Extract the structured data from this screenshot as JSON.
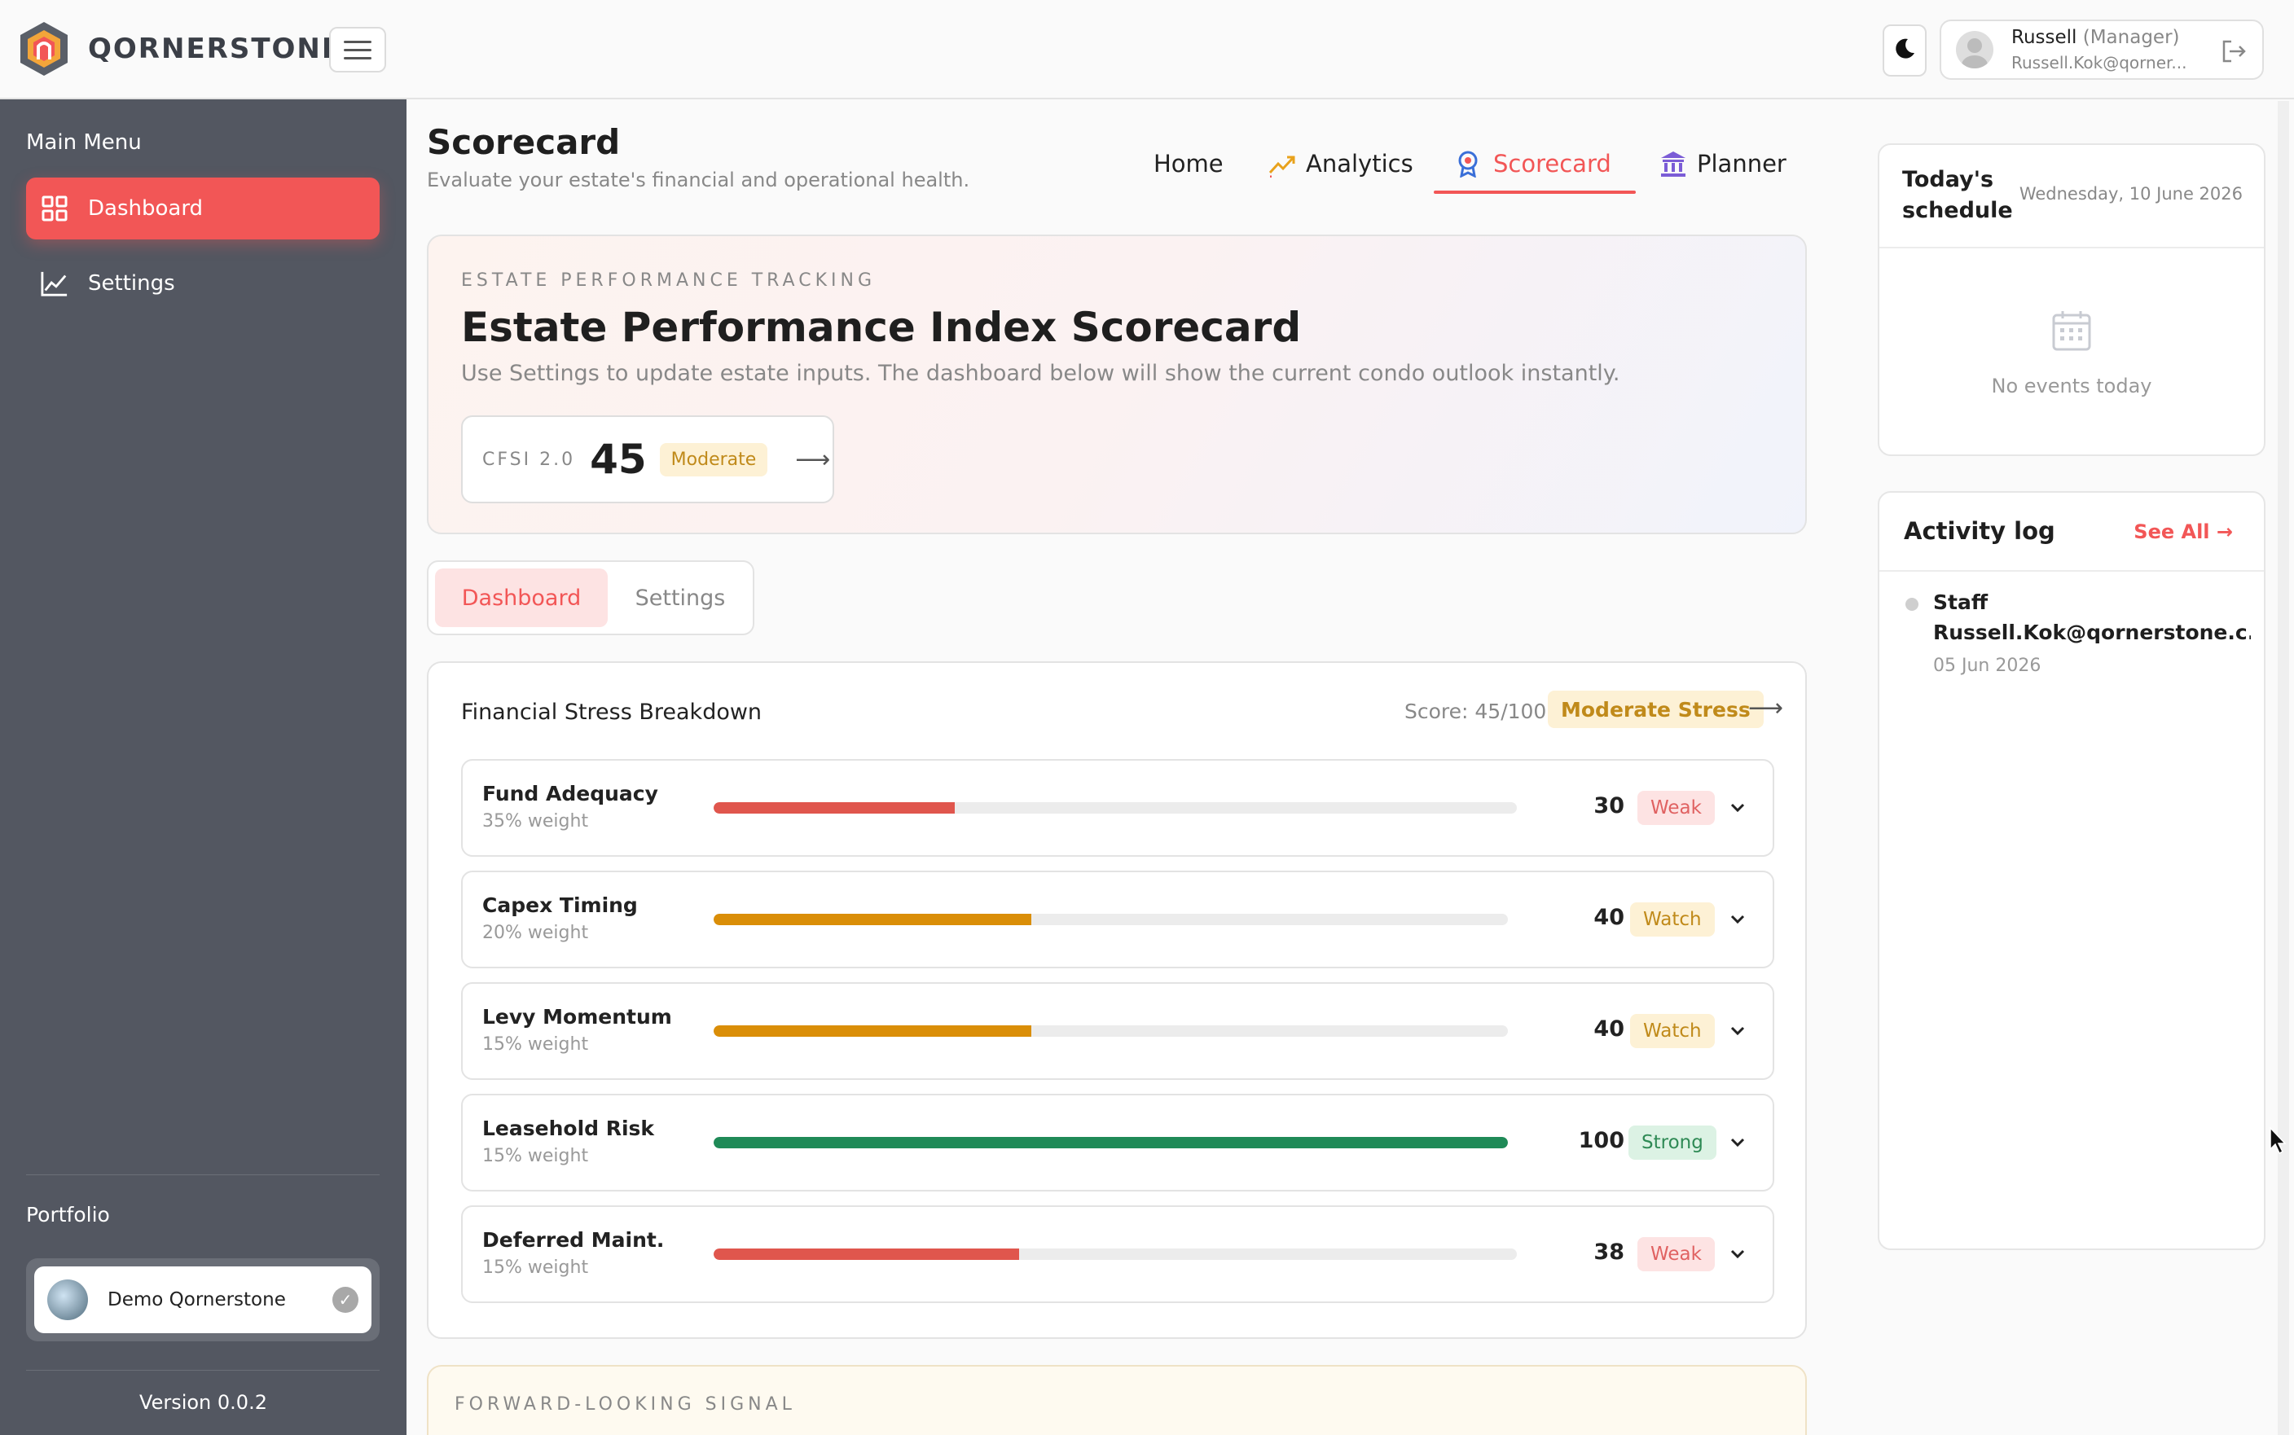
{
  "brand": {
    "name": "QORNERSTONE"
  },
  "sidebar": {
    "menu_title": "Main Menu",
    "items": [
      {
        "label": "Dashboard",
        "icon": "grid-icon",
        "active": true
      },
      {
        "label": "Settings",
        "icon": "chart-line-icon",
        "active": false
      }
    ],
    "portfolio_title": "Portfolio",
    "portfolio_name": "Demo Qornerstone",
    "version": "Version 0.0.2"
  },
  "topbar": {
    "user_name": "Russell",
    "user_role": "(Manager)",
    "user_email": "Russell.Kok@qorner..."
  },
  "page": {
    "title": "Scorecard",
    "subtitle": "Evaluate your estate's financial and operational health.",
    "nav": [
      {
        "label": "Home",
        "icon": ""
      },
      {
        "label": "Analytics",
        "icon": "trend-icon"
      },
      {
        "label": "Scorecard",
        "icon": "award-icon",
        "active": true
      },
      {
        "label": "Planner",
        "icon": "bank-icon"
      }
    ]
  },
  "hero": {
    "kicker": "ESTATE PERFORMANCE TRACKING",
    "title": "Estate Performance Index Scorecard",
    "desc": "Use Settings to update estate inputs. The dashboard below will show the current condo outlook instantly.",
    "cfsi_label": "CFSI 2.0",
    "cfsi_value": "45",
    "cfsi_badge": "Moderate"
  },
  "tabs": {
    "dashboard": "Dashboard",
    "settings": "Settings"
  },
  "breakdown": {
    "title": "Financial Stress Breakdown",
    "score_text": "Score: 45/100",
    "badge": "Moderate Stress",
    "rows": [
      {
        "name": "Fund Adequacy",
        "weight": "35% weight",
        "score": "30",
        "status": "Weak",
        "level": 0.3,
        "color": "#e0564d"
      },
      {
        "name": "Capex Timing",
        "weight": "20% weight",
        "score": "40",
        "status": "Watch",
        "level": 0.4,
        "color": "#da8e08"
      },
      {
        "name": "Levy Momentum",
        "weight": "15% weight",
        "score": "40",
        "status": "Watch",
        "level": 0.4,
        "color": "#da8e08"
      },
      {
        "name": "Leasehold Risk",
        "weight": "15% weight",
        "score": "100",
        "status": "Strong",
        "level": 1.0,
        "color": "#1f8a57"
      },
      {
        "name": "Deferred Maint.",
        "weight": "15% weight",
        "score": "38",
        "status": "Weak",
        "level": 0.38,
        "color": "#e0564d"
      }
    ]
  },
  "signal": {
    "kicker": "FORWARD-LOOKING SIGNAL"
  },
  "schedule": {
    "title": "Today's schedule",
    "date": "Wednesday, 10 June 2026",
    "empty": "No events today"
  },
  "activity": {
    "title": "Activity log",
    "see_all": "See All",
    "entries": [
      {
        "role": "Staff",
        "email": "Russell.Kok@qornerstone.c...",
        "date": "05 Jun 2026"
      }
    ]
  },
  "colors": {
    "accent": "#f25656",
    "sidebar": "#535761"
  }
}
